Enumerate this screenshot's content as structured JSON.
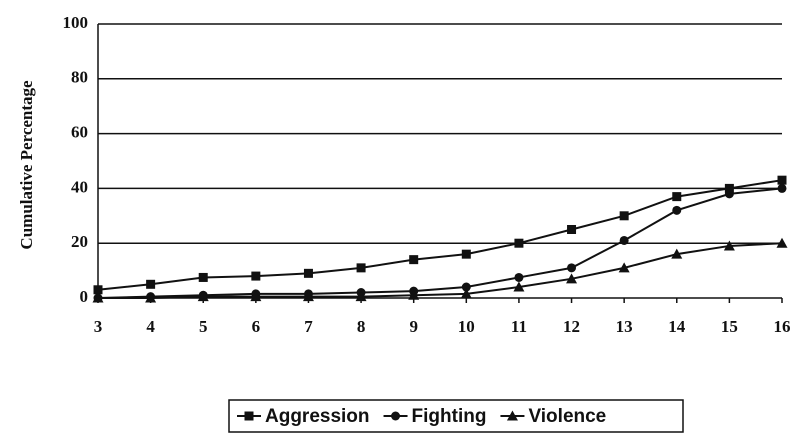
{
  "chart_data": {
    "type": "line",
    "y_label": "Cumulative Percentage",
    "x": [
      3,
      4,
      5,
      6,
      7,
      8,
      9,
      10,
      11,
      12,
      13,
      14,
      15,
      16
    ],
    "xlim": [
      3,
      16
    ],
    "xticks": [
      3,
      4,
      5,
      6,
      7,
      8,
      9,
      10,
      11,
      12,
      13,
      14,
      15,
      16
    ],
    "ylim": [
      0,
      100
    ],
    "yticks": [
      0,
      20,
      40,
      60,
      80,
      100
    ],
    "grid": true,
    "series": [
      {
        "name": "Aggression",
        "color": "#111111",
        "marker": "square",
        "values": [
          3,
          5,
          7.5,
          8,
          9,
          11,
          14,
          16,
          20,
          25,
          30,
          37,
          40,
          43
        ]
      },
      {
        "name": "Fighting",
        "color": "#111111",
        "marker": "circle",
        "values": [
          0,
          0.5,
          1,
          1.5,
          1.5,
          2,
          2.5,
          4,
          7.5,
          11,
          21,
          32,
          38,
          40
        ]
      },
      {
        "name": "Violence",
        "color": "#111111",
        "marker": "triangle",
        "values": [
          0,
          0,
          0.5,
          0.5,
          0.5,
          0.5,
          1,
          1.5,
          4,
          7,
          11,
          16,
          19,
          20
        ]
      }
    ],
    "legend": "bottom"
  }
}
